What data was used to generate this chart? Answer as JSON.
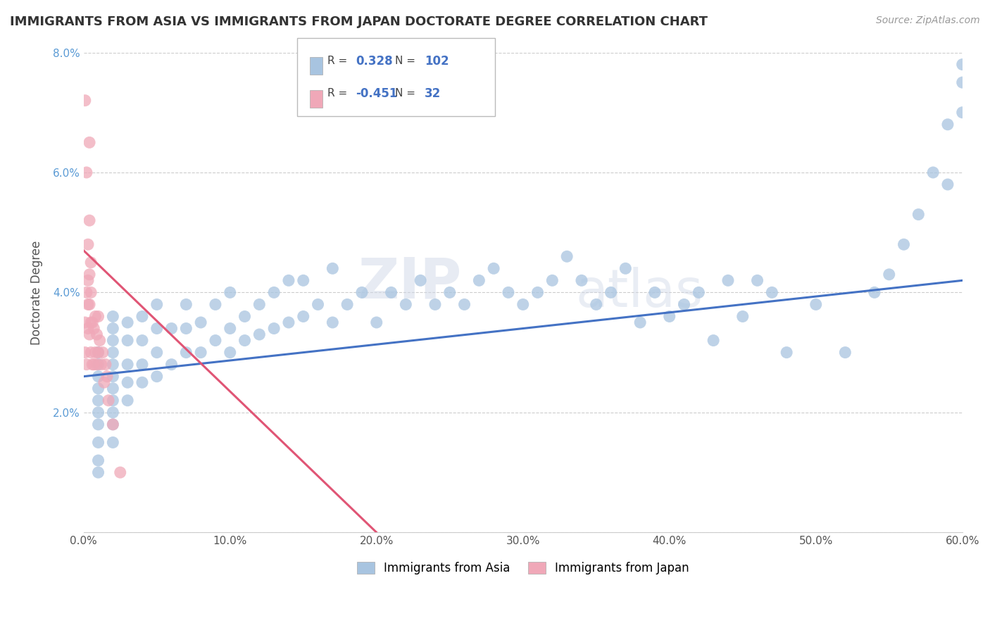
{
  "title": "IMMIGRANTS FROM ASIA VS IMMIGRANTS FROM JAPAN DOCTORATE DEGREE CORRELATION CHART",
  "source": "Source: ZipAtlas.com",
  "ylabel": "Doctorate Degree",
  "xlim": [
    0.0,
    0.6
  ],
  "ylim": [
    0.0,
    0.08
  ],
  "xticks": [
    0.0,
    0.1,
    0.2,
    0.3,
    0.4,
    0.5,
    0.6
  ],
  "yticks": [
    0.0,
    0.02,
    0.04,
    0.06,
    0.08
  ],
  "xticklabels": [
    "0.0%",
    "10.0%",
    "20.0%",
    "30.0%",
    "40.0%",
    "50.0%",
    "60.0%"
  ],
  "yticklabels": [
    "",
    "2.0%",
    "4.0%",
    "6.0%",
    "8.0%"
  ],
  "legend1_label": "Immigrants from Asia",
  "legend2_label": "Immigrants from Japan",
  "R_asia": 0.328,
  "N_asia": 102,
  "R_japan": -0.451,
  "N_japan": 32,
  "color_asia": "#a8c4e0",
  "color_japan": "#f0a8b8",
  "trendline_asia_color": "#4472c4",
  "trendline_japan_color": "#e05575",
  "watermark_zip": "ZIP",
  "watermark_atlas": "atlas",
  "background_color": "#ffffff",
  "grid_color": "#cccccc",
  "asia_x": [
    0.01,
    0.01,
    0.01,
    0.01,
    0.01,
    0.01,
    0.01,
    0.01,
    0.01,
    0.01,
    0.02,
    0.02,
    0.02,
    0.02,
    0.02,
    0.02,
    0.02,
    0.02,
    0.02,
    0.02,
    0.02,
    0.03,
    0.03,
    0.03,
    0.03,
    0.03,
    0.04,
    0.04,
    0.04,
    0.04,
    0.05,
    0.05,
    0.05,
    0.05,
    0.06,
    0.06,
    0.07,
    0.07,
    0.07,
    0.08,
    0.08,
    0.09,
    0.09,
    0.1,
    0.1,
    0.1,
    0.11,
    0.11,
    0.12,
    0.12,
    0.13,
    0.13,
    0.14,
    0.14,
    0.15,
    0.15,
    0.16,
    0.17,
    0.17,
    0.18,
    0.19,
    0.2,
    0.21,
    0.22,
    0.23,
    0.24,
    0.25,
    0.26,
    0.27,
    0.28,
    0.29,
    0.3,
    0.31,
    0.32,
    0.33,
    0.34,
    0.35,
    0.36,
    0.37,
    0.38,
    0.39,
    0.4,
    0.41,
    0.42,
    0.43,
    0.44,
    0.45,
    0.46,
    0.47,
    0.48,
    0.5,
    0.52,
    0.54,
    0.55,
    0.56,
    0.57,
    0.58,
    0.59,
    0.59,
    0.6,
    0.6,
    0.6
  ],
  "asia_y": [
    0.01,
    0.012,
    0.015,
    0.018,
    0.02,
    0.022,
    0.024,
    0.026,
    0.028,
    0.03,
    0.015,
    0.018,
    0.02,
    0.022,
    0.024,
    0.026,
    0.028,
    0.03,
    0.032,
    0.034,
    0.036,
    0.022,
    0.025,
    0.028,
    0.032,
    0.035,
    0.025,
    0.028,
    0.032,
    0.036,
    0.026,
    0.03,
    0.034,
    0.038,
    0.028,
    0.034,
    0.03,
    0.034,
    0.038,
    0.03,
    0.035,
    0.032,
    0.038,
    0.03,
    0.034,
    0.04,
    0.032,
    0.036,
    0.033,
    0.038,
    0.034,
    0.04,
    0.035,
    0.042,
    0.036,
    0.042,
    0.038,
    0.035,
    0.044,
    0.038,
    0.04,
    0.035,
    0.04,
    0.038,
    0.042,
    0.038,
    0.04,
    0.038,
    0.042,
    0.044,
    0.04,
    0.038,
    0.04,
    0.042,
    0.046,
    0.042,
    0.038,
    0.04,
    0.044,
    0.035,
    0.04,
    0.036,
    0.038,
    0.04,
    0.032,
    0.042,
    0.036,
    0.042,
    0.04,
    0.03,
    0.038,
    0.03,
    0.04,
    0.043,
    0.048,
    0.053,
    0.06,
    0.068,
    0.058,
    0.075,
    0.07,
    0.078
  ],
  "japan_x": [
    0.001,
    0.001,
    0.002,
    0.002,
    0.003,
    0.003,
    0.003,
    0.004,
    0.004,
    0.004,
    0.005,
    0.005,
    0.005,
    0.006,
    0.006,
    0.007,
    0.007,
    0.008,
    0.008,
    0.009,
    0.009,
    0.01,
    0.01,
    0.011,
    0.012,
    0.013,
    0.014,
    0.015,
    0.016,
    0.017,
    0.02,
    0.025
  ],
  "japan_y": [
    0.03,
    0.035,
    0.028,
    0.04,
    0.034,
    0.038,
    0.042,
    0.033,
    0.038,
    0.043,
    0.03,
    0.035,
    0.04,
    0.028,
    0.035,
    0.028,
    0.034,
    0.03,
    0.036,
    0.028,
    0.033,
    0.03,
    0.036,
    0.032,
    0.028,
    0.03,
    0.025,
    0.028,
    0.026,
    0.022,
    0.018,
    0.01
  ],
  "japan_x_high": [
    0.001,
    0.002,
    0.003,
    0.004,
    0.004,
    0.005
  ],
  "japan_y_high": [
    0.072,
    0.06,
    0.048,
    0.065,
    0.052,
    0.045
  ],
  "trendline_asia_x0": 0.0,
  "trendline_asia_y0": 0.026,
  "trendline_asia_x1": 0.6,
  "trendline_asia_y1": 0.042,
  "trendline_japan_x0": 0.0,
  "trendline_japan_y0": 0.047,
  "trendline_japan_x1": 0.2,
  "trendline_japan_y1": 0.0
}
